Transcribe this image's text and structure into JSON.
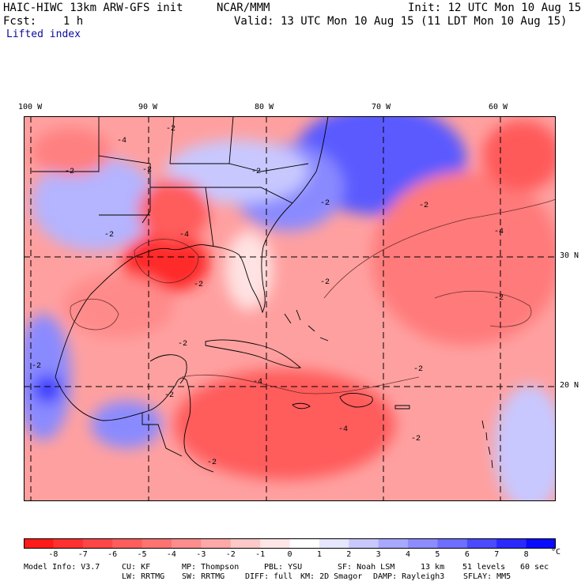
{
  "header": {
    "model": "HAIC-HIWC 13km ARW-GFS init",
    "center": "NCAR/MMM",
    "init": "Init: 12 UTC Mon 10 Aug 15",
    "fcst": "Fcst:    1 h",
    "valid": "Valid: 13 UTC Mon 10 Aug 15 (11 LDT Mon 10 Aug 15)",
    "field": "Lifted index"
  },
  "axes": {
    "lon_labels": [
      "100 W",
      "90 W",
      "80 W",
      "70 W",
      "60 W"
    ],
    "lat_labels": [
      "30 N",
      "20 N"
    ]
  },
  "contour_labels": [
    "-2",
    "-4",
    "-2",
    "-2",
    "-2",
    "-2",
    "-4",
    "-2",
    "-2",
    "-4",
    "-2",
    "-2",
    "-2",
    "-4",
    "-2",
    "-2",
    "-4",
    "-2",
    "-2",
    "-2",
    "-2"
  ],
  "colorbar": {
    "labels": [
      "-8",
      "-7",
      "-6",
      "-5",
      "-4",
      "-3",
      "-2",
      "-1",
      "0",
      "1",
      "2",
      "3",
      "4",
      "5",
      "6",
      "7",
      "8"
    ],
    "unit": "°C",
    "colors": [
      "#ff1a1a",
      "#ff3030",
      "#ff4646",
      "#ff5c5c",
      "#ff7272",
      "#ff8c8c",
      "#ffa8a8",
      "#ffc8c8",
      "#ffe6e6",
      "#ffffff",
      "#e6e6ff",
      "#c8c8ff",
      "#a8a8ff",
      "#8c8cff",
      "#6e6eff",
      "#4a4aff",
      "#2a2aff",
      "#0a0aff"
    ]
  },
  "footer": {
    "line1": [
      "Model Info: V3.7",
      "CU: KF",
      "MP: Thompson",
      "PBL: YSU",
      "SF: Noah LSM",
      "13 km",
      "51 levels",
      "60 sec"
    ],
    "line2": [
      "LW: RRTMG",
      "SW: RRTMG",
      "DIFF: full",
      "KM: 2D Smagor",
      "DAMP: Rayleigh3",
      "SFLAY: MM5"
    ]
  }
}
